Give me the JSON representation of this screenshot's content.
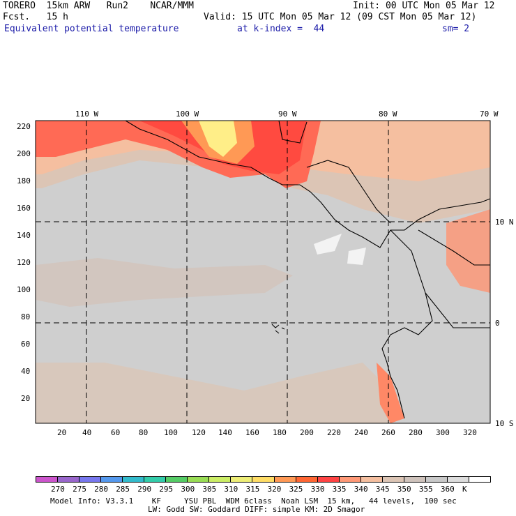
{
  "header": {
    "line1_left": "TORERO  15km ARW   Run2    NCAR/MMM",
    "line1_right": "Init: 00 UTC Mon 05 Mar 12",
    "line2_left": "Fcst.   15 h",
    "line2_right": "Valid: 15 UTC Mon 05 Mar 12 (09 CST Mon 05 Mar 12)",
    "field": "Equivalent potential temperature",
    "level": "at k-index =  44",
    "smooth": "sm= 2"
  },
  "map": {
    "lon_labels": [
      "110 W",
      "100 W",
      "90 W",
      "80 W",
      "70 W"
    ],
    "lat_labels": [
      "10 N",
      "0",
      "10 S"
    ],
    "y_ticks": [
      "220",
      "200",
      "180",
      "160",
      "140",
      "120",
      "100",
      "80",
      "60",
      "40",
      "20"
    ],
    "x_ticks": [
      "20",
      "40",
      "60",
      "80",
      "100",
      "120",
      "140",
      "160",
      "180",
      "200",
      "220",
      "240",
      "260",
      "280",
      "300",
      "320"
    ]
  },
  "colorbar": {
    "colors": [
      "#cc55cc",
      "#9966cc",
      "#7777ee",
      "#5599ee",
      "#33bbcc",
      "#33ccaa",
      "#55cc66",
      "#99dd55",
      "#ccee66",
      "#eeee77",
      "#ffdd66",
      "#ff9955",
      "#ff6633",
      "#ff4444",
      "#ff9977",
      "#f5bfa0",
      "#dcc5b5",
      "#cfc3bc",
      "#c9c9c9",
      "#dddddd",
      "#ffffff"
    ],
    "labels": [
      "270",
      "275",
      "280",
      "285",
      "290",
      "295",
      "300",
      "305",
      "310",
      "315",
      "320",
      "325",
      "330",
      "335",
      "340",
      "345",
      "350",
      "355",
      "360",
      "K"
    ]
  },
  "footer": {
    "line1": "Model Info: V3.3.1    KF     YSU PBL  WDM 6class  Noah LSM  15 km,   44 levels,  100 sec",
    "line2": "LW: Godd SW: Goddard DIFF: simple KM: 2D Smagor"
  }
}
